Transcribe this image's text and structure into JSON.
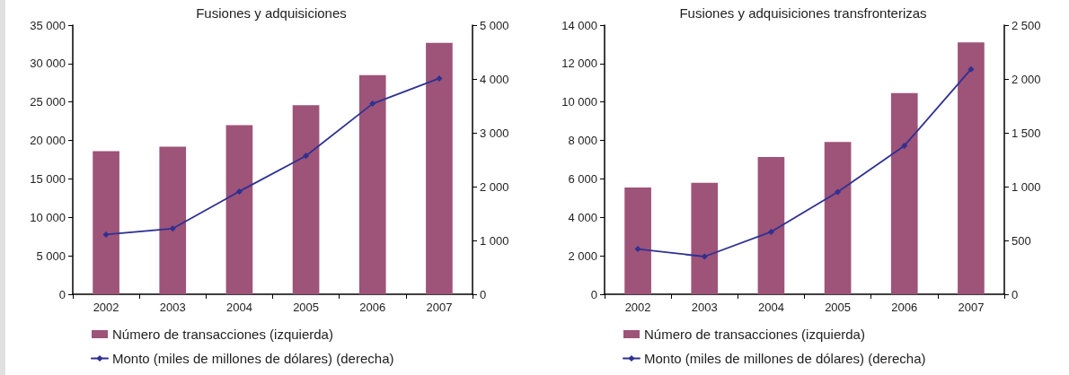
{
  "chart_data": [
    {
      "type": "bar",
      "title": "Fusiones y adquisiciones",
      "categories": [
        "2002",
        "2003",
        "2004",
        "2005",
        "2006",
        "2007"
      ],
      "series": [
        {
          "name": "Número de transacciones (izquierda)",
          "color": "#9e5378",
          "values": [
            18600,
            19200,
            22000,
            24600,
            28500,
            32700
          ]
        },
        {
          "name": "Monto (miles de millones de dólares) (derecha)",
          "type": "line",
          "axis": "y2",
          "color": "#2e3192",
          "values": [
            1110,
            1220,
            1910,
            2570,
            3540,
            4010
          ]
        }
      ],
      "ylim": [
        0,
        35000
      ],
      "yticks": [
        {
          "value": 0,
          "label": "0"
        },
        {
          "value": 5000,
          "label": "5 000"
        },
        {
          "value": 10000,
          "label": "10 000"
        },
        {
          "value": 15000,
          "label": "15 000"
        },
        {
          "value": 20000,
          "label": "20 000"
        },
        {
          "value": 25000,
          "label": "25 000"
        },
        {
          "value": 30000,
          "label": "30 000"
        },
        {
          "value": 35000,
          "label": "35 000"
        }
      ],
      "y2lim": [
        0,
        5000
      ],
      "y2ticks": [
        {
          "value": 0,
          "label": "0"
        },
        {
          "value": 1000,
          "label": "1 000"
        },
        {
          "value": 2000,
          "label": "2 000"
        },
        {
          "value": 3000,
          "label": "3 000"
        },
        {
          "value": 4000,
          "label": "4 000"
        },
        {
          "value": 5000,
          "label": "5 000"
        }
      ],
      "grid": false,
      "legend": "bottom left",
      "marker": "diamond",
      "line_style": "solid"
    },
    {
      "type": "bar",
      "title": "Fusiones y adquisiciones transfronterizas",
      "categories": [
        "2002",
        "2003",
        "2004",
        "2005",
        "2006",
        "2007"
      ],
      "series": [
        {
          "name": "Número de transacciones (izquierda)",
          "color": "#9e5378",
          "values": [
            5550,
            5800,
            7140,
            7920,
            10460,
            13100
          ]
        },
        {
          "name": "Monto (miles de millones de dólares) (derecha)",
          "type": "line",
          "axis": "y2",
          "color": "#2e3192",
          "values": [
            420,
            350,
            580,
            950,
            1380,
            2090
          ]
        }
      ],
      "ylim": [
        0,
        14000
      ],
      "yticks": [
        {
          "value": 0,
          "label": "0"
        },
        {
          "value": 2000,
          "label": "2 000"
        },
        {
          "value": 4000,
          "label": "4 000"
        },
        {
          "value": 6000,
          "label": "6 000"
        },
        {
          "value": 8000,
          "label": "8 000"
        },
        {
          "value": 10000,
          "label": "10 000"
        },
        {
          "value": 12000,
          "label": "12 000"
        },
        {
          "value": 14000,
          "label": "14 000"
        }
      ],
      "y2lim": [
        0,
        2500
      ],
      "y2ticks": [
        {
          "value": 0,
          "label": "0"
        },
        500,
        {
          "value": 1000,
          "label": "1 000"
        },
        {
          "value": 1500,
          "label": "1 500"
        },
        {
          "value": 2000,
          "label": "2 000"
        },
        {
          "value": 2500,
          "label": "2 500"
        }
      ],
      "grid": false,
      "legend": "bottom left",
      "marker": "diamond",
      "line_style": "solid"
    }
  ]
}
